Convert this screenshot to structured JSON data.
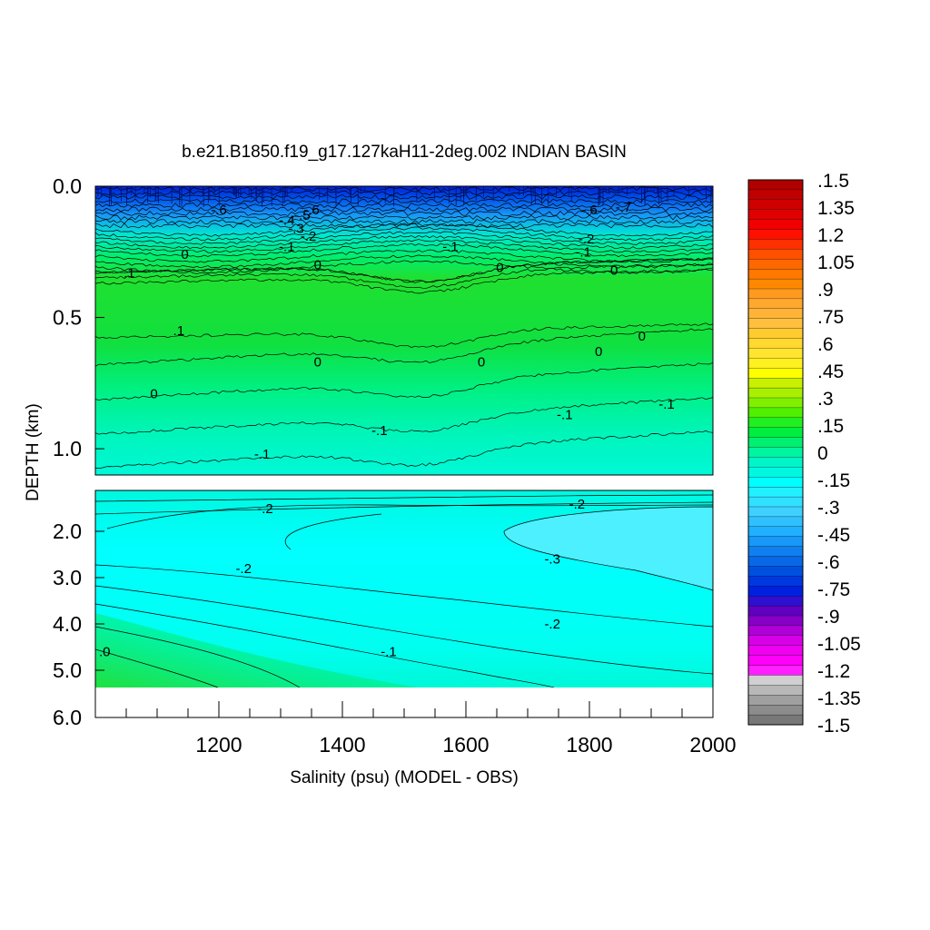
{
  "chart_data": {
    "type": "heatmap",
    "title": "b.e21.B1850.f19_g17.127kaH11-2deg.002 INDIAN BASIN",
    "xlabel": "Salinity (psu) (MODEL - OBS)",
    "ylabel": "DEPTH (km)",
    "xlim": [
      1000,
      2000
    ],
    "x_ticks": [
      "1200",
      "1400",
      "1600",
      "1800",
      "2000"
    ],
    "x_tick_values": [
      1200,
      1400,
      1600,
      1800,
      2000
    ],
    "upper_panel": {
      "ylim": [
        0.0,
        1.1
      ],
      "y_ticks": [
        "0.0",
        "0.5",
        "1.0"
      ],
      "y_tick_values": [
        0.0,
        0.5,
        1.0
      ],
      "contour_labels": [
        {
          "text": "-.6",
          "x": 1200,
          "y": 0.09
        },
        {
          "text": "-.6",
          "x": 1350,
          "y": 0.09
        },
        {
          "text": "-.6",
          "x": 1800,
          "y": 0.09
        },
        {
          "text": "-.7",
          "x": 1855,
          "y": 0.08
        },
        {
          "text": "-.5",
          "x": 1335,
          "y": 0.11
        },
        {
          "text": "-.4",
          "x": 1310,
          "y": 0.13
        },
        {
          "text": "-.3",
          "x": 1325,
          "y": 0.16
        },
        {
          "text": "-.2",
          "x": 1345,
          "y": 0.19
        },
        {
          "text": "-.2",
          "x": 1795,
          "y": 0.2
        },
        {
          "text": "-.1",
          "x": 1310,
          "y": 0.23
        },
        {
          "text": "-.1",
          "x": 1575,
          "y": 0.23
        },
        {
          "text": "-.1",
          "x": 1790,
          "y": 0.25
        },
        {
          "text": "0",
          "x": 1145,
          "y": 0.26
        },
        {
          "text": "0",
          "x": 1360,
          "y": 0.3
        },
        {
          "text": "0",
          "x": 1655,
          "y": 0.31
        },
        {
          "text": "0",
          "x": 1840,
          "y": 0.32
        },
        {
          "text": ".1",
          "x": 1055,
          "y": 0.33
        },
        {
          "text": ".1",
          "x": 1135,
          "y": 0.55
        },
        {
          "text": "0",
          "x": 1885,
          "y": 0.57
        },
        {
          "text": "0",
          "x": 1815,
          "y": 0.63
        },
        {
          "text": "0",
          "x": 1625,
          "y": 0.67
        },
        {
          "text": "0",
          "x": 1360,
          "y": 0.67
        },
        {
          "text": "0",
          "x": 1095,
          "y": 0.79
        },
        {
          "text": "-.1",
          "x": 1925,
          "y": 0.83
        },
        {
          "text": "-.1",
          "x": 1760,
          "y": 0.87
        },
        {
          "text": "-.1",
          "x": 1460,
          "y": 0.93
        },
        {
          "text": "-.1",
          "x": 1270,
          "y": 1.02
        }
      ]
    },
    "lower_panel": {
      "ylim": [
        1.1,
        6.0
      ],
      "y_ticks": [
        "2.0",
        "3.0",
        "4.0",
        "5.0",
        "6.0"
      ],
      "y_tick_values": [
        2.0,
        3.0,
        4.0,
        5.0,
        6.0
      ],
      "contour_labels": [
        {
          "text": "-.2",
          "x": 1275,
          "y": 1.5
        },
        {
          "text": "-.2",
          "x": 1780,
          "y": 1.4
        },
        {
          "text": "-.2",
          "x": 1240,
          "y": 2.8
        },
        {
          "text": "-.3",
          "x": 1740,
          "y": 2.6
        },
        {
          "text": "-.2",
          "x": 1740,
          "y": 4.0
        },
        {
          "text": "-.1",
          "x": 1475,
          "y": 4.6
        },
        {
          "text": ".0",
          "x": 1015,
          "y": 4.6
        }
      ]
    },
    "colorbar": {
      "tick_labels": [
        ".1.5",
        "1.35",
        "1.2",
        "1.05",
        ".9",
        ".75",
        ".6",
        ".45",
        ".3",
        ".15",
        "0",
        "-.15",
        "-.3",
        "-.45",
        "-.6",
        "-.75",
        "-.9",
        "-1.05",
        "-1.2",
        "-1.35",
        "-1.5"
      ],
      "range": [
        -1.5,
        1.5
      ],
      "colors_top_to_bottom": [
        "#b00000",
        "#c00000",
        "#d00000",
        "#e00000",
        "#f00000",
        "#ff1000",
        "#ff3000",
        "#ff5000",
        "#ff6800",
        "#ff7800",
        "#ff8800",
        "#ff9a20",
        "#ffa830",
        "#ffb438",
        "#ffc040",
        "#ffcc30",
        "#ffd830",
        "#ffe430",
        "#fff020",
        "#ffff00",
        "#c8f000",
        "#a8f000",
        "#80f000",
        "#50f000",
        "#20f020",
        "#00ee40",
        "#00f070",
        "#00f5a0",
        "#00f5c8",
        "#00f8e0",
        "#00ffff",
        "#20f0ff",
        "#30e0ff",
        "#40d0ff",
        "#30c0ff",
        "#20b0ff",
        "#1898f8",
        "#1080f0",
        "#0868e8",
        "#0050e0",
        "#0038e0",
        "#0020e0",
        "#3010d0",
        "#6000c0",
        "#8800c8",
        "#b000d8",
        "#d800e8",
        "#f000f0",
        "#ff00f8",
        "#ff20ff",
        "#d0d0d0",
        "#b8b8b8",
        "#a0a0a0",
        "#8c8c8c",
        "#787878"
      ]
    }
  }
}
